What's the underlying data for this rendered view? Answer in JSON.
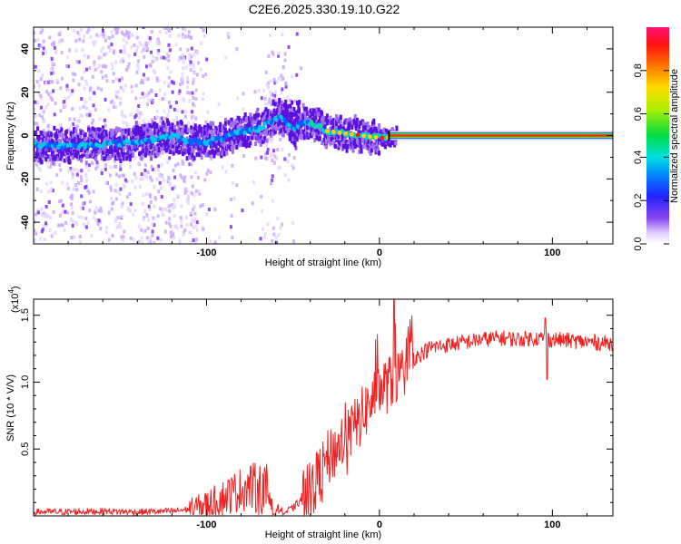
{
  "title": "C2E6.2025.330.19.10.G22",
  "colors": {
    "snr_line": "#ee2222",
    "bg": "#ffffff",
    "axis": "#000000"
  },
  "chart_data": [
    {
      "type": "heatmap",
      "name": "spectrogram",
      "xlabel": "Height of straight line (km)",
      "ylabel": "Frequency (Hz)",
      "xlim": [
        -200,
        135
      ],
      "ylim": [
        -50,
        50
      ],
      "xticks": [
        -100,
        0,
        100
      ],
      "yticks": [
        -40,
        -20,
        0,
        20,
        40
      ],
      "ytick_labels": [
        "-40",
        "-20",
        "0",
        "20",
        "40"
      ],
      "xtick_labels": [
        "-100",
        "0",
        "100"
      ],
      "colorbar": {
        "label": "Normalized spectral amplitude",
        "range": [
          0,
          1
        ],
        "ticks": [
          0.0,
          0.2,
          0.4,
          0.6,
          0.8
        ],
        "tick_labels": [
          "0.0",
          "0.2",
          "0.4",
          "0.6",
          "0.8"
        ]
      },
      "ridge": {
        "x": [
          -200,
          -180,
          -160,
          -140,
          -120,
          -110,
          -100,
          -90,
          -80,
          -70,
          -60,
          -55,
          -50,
          -45,
          -40,
          -35,
          -30,
          -20,
          -10,
          0,
          5,
          10,
          135
        ],
        "y": [
          -4,
          -5,
          -4,
          -3,
          0,
          -3,
          -3,
          -1,
          2,
          3,
          8,
          8,
          3,
          6,
          6,
          4,
          2,
          1,
          0,
          -1,
          -1,
          0,
          0
        ],
        "note": "main signal trace; noise at -50 to 50 Hz for x < -100 and around x = -60"
      }
    },
    {
      "type": "line",
      "name": "snr",
      "xlabel": "Height of straight line (km)",
      "ylabel": "SNR (10 * V/V)",
      "multiplier_label": "(x10",
      "multiplier_exp": "4",
      "multiplier_close": ")",
      "xlim": [
        -200,
        135
      ],
      "ylim": [
        0,
        1.62
      ],
      "xticks": [
        -100,
        0,
        100
      ],
      "xtick_labels": [
        "-100",
        "0",
        "100"
      ],
      "yticks": [
        0.5,
        1.0,
        1.5
      ],
      "ytick_labels": [
        "0.5",
        "1.0",
        "1.5"
      ],
      "series": [
        {
          "name": "SNR",
          "x": [
            -200,
            -180,
            -160,
            -140,
            -120,
            -110,
            -100,
            -90,
            -80,
            -75,
            -70,
            -65,
            -60,
            -55,
            -50,
            -45,
            -40,
            -35,
            -30,
            -25,
            -20,
            -15,
            -10,
            -5,
            0,
            5,
            10,
            15,
            20,
            25,
            30,
            40,
            50,
            60,
            70,
            80,
            90,
            100,
            110,
            120,
            135
          ],
          "y": [
            0.03,
            0.03,
            0.035,
            0.03,
            0.035,
            0.05,
            0.08,
            0.14,
            0.2,
            0.22,
            0.2,
            0.18,
            0.07,
            0.02,
            0.06,
            0.12,
            0.2,
            0.3,
            0.42,
            0.5,
            0.6,
            0.65,
            0.75,
            0.85,
            0.95,
            0.98,
            1.02,
            1.12,
            1.18,
            1.22,
            1.26,
            1.28,
            1.3,
            1.32,
            1.33,
            1.32,
            1.33,
            1.32,
            1.31,
            1.3,
            1.29
          ]
        }
      ]
    }
  ]
}
